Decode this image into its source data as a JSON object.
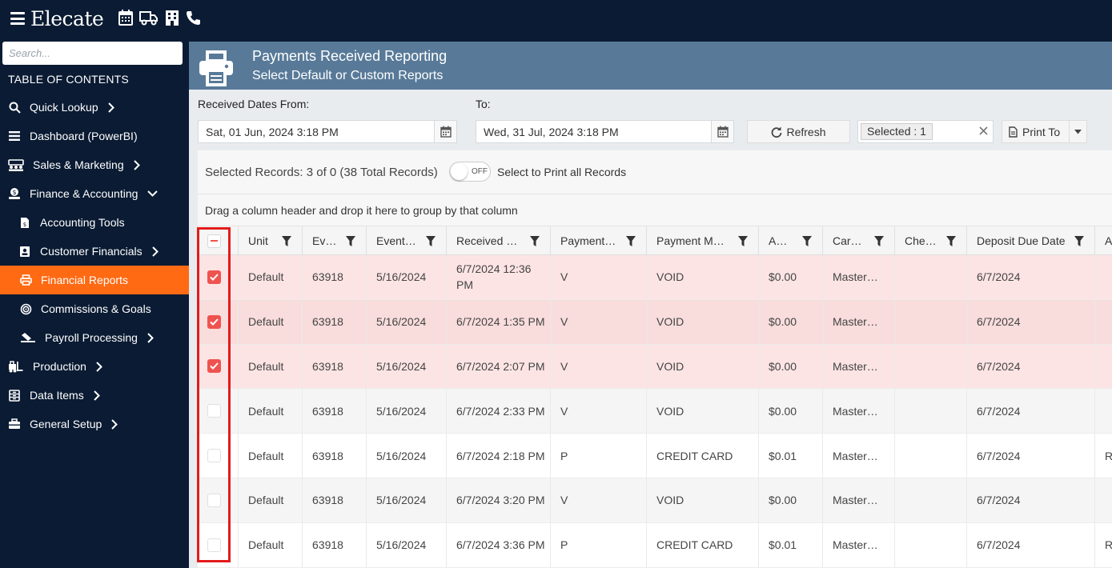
{
  "app": {
    "logo_text": "Elecate",
    "top_icons": [
      "calendar-icon",
      "truck-icon",
      "building-icon",
      "phone-icon"
    ]
  },
  "sidebar": {
    "search_placeholder": "Search...",
    "toc_label": "TABLE OF CONTENTS",
    "items": [
      {
        "label": "Quick Lookup",
        "icon": "search-icon",
        "chevron": "right"
      },
      {
        "label": "Dashboard (PowerBI)",
        "icon": "list-icon",
        "chevron": ""
      },
      {
        "label": "Sales & Marketing",
        "icon": "people-icon",
        "chevron": "right"
      },
      {
        "label": "Finance & Accounting",
        "icon": "money-icon",
        "chevron": "down"
      },
      {
        "label": "Accounting Tools",
        "icon": "document-icon",
        "chevron": ""
      },
      {
        "label": "Customer Financials",
        "icon": "contact-card-icon",
        "chevron": "right"
      },
      {
        "label": "Financial Reports",
        "icon": "printer-icon",
        "chevron": "",
        "active": true
      },
      {
        "label": "Commissions & Goals",
        "icon": "target-icon",
        "chevron": ""
      },
      {
        "label": "Payroll Processing",
        "icon": "pen-icon",
        "chevron": "right"
      },
      {
        "label": "Production",
        "icon": "forklift-icon",
        "chevron": "right"
      },
      {
        "label": "Data Items",
        "icon": "database-icon",
        "chevron": "right"
      },
      {
        "label": "General Setup",
        "icon": "toolbox-icon",
        "chevron": "right"
      }
    ]
  },
  "banner": {
    "title": "Payments Received Reporting",
    "subtitle": "Select Default or Custom Reports"
  },
  "filters": {
    "from_label": "Received Dates From:",
    "to_label": "To:",
    "from_value": "Sat, 01 Jun, 2024 3:18 PM",
    "to_value": "Wed, 31 Jul, 2024 3:18 PM",
    "refresh_label": "Refresh",
    "selected_chip": "Selected : 1",
    "print_label": "Print To"
  },
  "grid": {
    "records_text": "Selected Records: 3 of 0 (38 Total Records)",
    "toggle_text": "OFF",
    "print_all_text": "Select to Print all Records",
    "group_hint": "Drag a column header and drop it here to group by that column",
    "columns": [
      "Unit",
      "Event #",
      "Event Date",
      "Received Date",
      "Payment Type",
      "Payment Method",
      "Amount",
      "Card Type",
      "Check #",
      "Deposit Due Date",
      "A"
    ],
    "columns_display": [
      "Unit",
      "Ev…",
      "Event…",
      "Received …",
      "Payment…",
      "Payment M…",
      "A…",
      "Car…",
      "Che…",
      "Deposit Due Date",
      "A"
    ],
    "rows": [
      {
        "checked": true,
        "unit": "Default",
        "event": "63918",
        "event_date": "5/16/2024",
        "received": "6/7/2024 12:36 PM",
        "ptype": "V",
        "method": "VOID",
        "amount": "$0.00",
        "card": "Master…",
        "check": "",
        "deposit": "6/7/2024",
        "extra": ""
      },
      {
        "checked": true,
        "unit": "Default",
        "event": "63918",
        "event_date": "5/16/2024",
        "received": "6/7/2024 1:35 PM",
        "ptype": "V",
        "method": "VOID",
        "amount": "$0.00",
        "card": "Master…",
        "check": "",
        "deposit": "6/7/2024",
        "extra": ""
      },
      {
        "checked": true,
        "unit": "Default",
        "event": "63918",
        "event_date": "5/16/2024",
        "received": "6/7/2024 2:07 PM",
        "ptype": "V",
        "method": "VOID",
        "amount": "$0.00",
        "card": "Master…",
        "check": "",
        "deposit": "6/7/2024",
        "extra": ""
      },
      {
        "checked": false,
        "unit": "Default",
        "event": "63918",
        "event_date": "5/16/2024",
        "received": "6/7/2024 2:33 PM",
        "ptype": "V",
        "method": "VOID",
        "amount": "$0.00",
        "card": "Master…",
        "check": "",
        "deposit": "6/7/2024",
        "extra": ""
      },
      {
        "checked": false,
        "unit": "Default",
        "event": "63918",
        "event_date": "5/16/2024",
        "received": "6/7/2024 2:18 PM",
        "ptype": "P",
        "method": "CREDIT CARD",
        "amount": "$0.01",
        "card": "Master…",
        "check": "",
        "deposit": "6/7/2024",
        "extra": "R"
      },
      {
        "checked": false,
        "unit": "Default",
        "event": "63918",
        "event_date": "5/16/2024",
        "received": "6/7/2024 3:20 PM",
        "ptype": "V",
        "method": "VOID",
        "amount": "$0.00",
        "card": "Master…",
        "check": "",
        "deposit": "6/7/2024",
        "extra": ""
      },
      {
        "checked": false,
        "unit": "Default",
        "event": "63918",
        "event_date": "5/16/2024",
        "received": "6/7/2024 3:36 PM",
        "ptype": "P",
        "method": "CREDIT CARD",
        "amount": "$0.01",
        "card": "Master…",
        "check": "",
        "deposit": "6/7/2024",
        "extra": "R"
      }
    ]
  },
  "colors": {
    "nav_bg": "#0a1b33",
    "active_item": "#ff6a13",
    "banner": "#587a98",
    "selected_row": "#fde4e4",
    "selected_row_alt": "#f9dcdc",
    "checkbox": "#ef5350",
    "highlight_box": "#e31b1b"
  }
}
